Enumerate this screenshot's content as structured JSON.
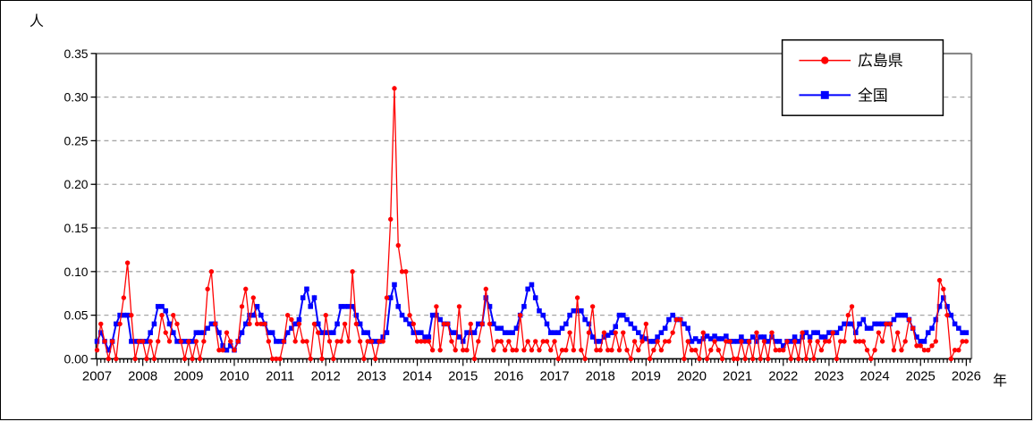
{
  "chart_data": {
    "type": "line",
    "title": "",
    "unit_label": "人",
    "x_axis_label": "年",
    "x_start_year": 2007,
    "x_end_year": 2026,
    "x_granularity": "monthly",
    "year_tick_labels": [
      "2007",
      "2008",
      "2009",
      "2010",
      "2011",
      "2012",
      "2013",
      "2014",
      "2015",
      "2016",
      "2017",
      "2018",
      "2019",
      "2020",
      "2021",
      "2022",
      "2023",
      "2024",
      "2025",
      "2026"
    ],
    "y_tick_labels": [
      "0.00",
      "0.05",
      "0.10",
      "0.15",
      "0.20",
      "0.25",
      "0.30",
      "0.35"
    ],
    "ylim": [
      0,
      0.35
    ],
    "y_step": 0.05,
    "grid": "horizontal dashed gray lines at each 0.05",
    "legend_position": "top-right inside plot",
    "colors": {
      "hiroshima": "#ff0000",
      "national": "#0000ff",
      "grid": "#a6a6a6",
      "frame": "#808080",
      "axis": "#000000"
    },
    "series": [
      {
        "name": "広島県",
        "color": "#ff0000",
        "marker": "circle",
        "values": [
          0.01,
          0.04,
          0.02,
          0.0,
          0.02,
          0.0,
          0.04,
          0.07,
          0.11,
          0.05,
          0.0,
          0.02,
          0.02,
          0.0,
          0.02,
          0.0,
          0.02,
          0.05,
          0.03,
          0.02,
          0.05,
          0.04,
          0.02,
          0.0,
          0.02,
          0.0,
          0.02,
          0.0,
          0.02,
          0.08,
          0.1,
          0.04,
          0.01,
          0.01,
          0.03,
          0.02,
          0.01,
          0.02,
          0.06,
          0.08,
          0.04,
          0.07,
          0.04,
          0.04,
          0.04,
          0.02,
          0.0,
          0.0,
          0.0,
          0.02,
          0.05,
          0.045,
          0.02,
          0.04,
          0.02,
          0.02,
          0.0,
          0.04,
          0.03,
          0.0,
          0.05,
          0.02,
          0.0,
          0.02,
          0.02,
          0.04,
          0.02,
          0.1,
          0.04,
          0.02,
          0.0,
          0.02,
          0.02,
          0.0,
          0.02,
          0.02,
          0.07,
          0.16,
          0.31,
          0.13,
          0.1,
          0.1,
          0.05,
          0.04,
          0.02,
          0.02,
          0.02,
          0.02,
          0.01,
          0.06,
          0.01,
          0.04,
          0.04,
          0.02,
          0.01,
          0.06,
          0.01,
          0.01,
          0.04,
          0.0,
          0.02,
          0.04,
          0.08,
          0.04,
          0.01,
          0.02,
          0.02,
          0.01,
          0.02,
          0.01,
          0.01,
          0.05,
          0.01,
          0.02,
          0.01,
          0.02,
          0.01,
          0.02,
          0.02,
          0.01,
          0.02,
          0.0,
          0.01,
          0.01,
          0.03,
          0.01,
          0.07,
          0.01,
          0.0,
          0.03,
          0.06,
          0.01,
          0.01,
          0.03,
          0.01,
          0.01,
          0.03,
          0.01,
          0.03,
          0.01,
          0.0,
          0.02,
          0.01,
          0.02,
          0.04,
          0.0,
          0.01,
          0.02,
          0.01,
          0.02,
          0.02,
          0.03,
          0.045,
          0.045,
          0.0,
          0.02,
          0.01,
          0.01,
          0.0,
          0.03,
          0.0,
          0.01,
          0.02,
          0.01,
          0.0,
          0.02,
          0.02,
          0.0,
          0.0,
          0.02,
          0.0,
          0.02,
          0.0,
          0.03,
          0.0,
          0.02,
          0.0,
          0.03,
          0.01,
          0.01,
          0.01,
          0.02,
          0.0,
          0.02,
          0.0,
          0.03,
          0.0,
          0.02,
          0.0,
          0.02,
          0.01,
          0.02,
          0.02,
          0.03,
          0.0,
          0.02,
          0.02,
          0.05,
          0.06,
          0.02,
          0.02,
          0.02,
          0.01,
          0.0,
          0.01,
          0.03,
          0.02,
          0.04,
          0.04,
          0.01,
          0.03,
          0.01,
          0.02,
          0.045,
          0.035,
          0.015,
          0.015,
          0.01,
          0.01,
          0.015,
          0.02,
          0.09,
          0.08,
          0.05,
          0.0,
          0.01,
          0.01,
          0.02,
          0.02
        ]
      },
      {
        "name": "全国",
        "color": "#0000ff",
        "marker": "square",
        "values": [
          0.02,
          0.03,
          0.02,
          0.01,
          0.02,
          0.04,
          0.05,
          0.05,
          0.05,
          0.02,
          0.02,
          0.02,
          0.02,
          0.02,
          0.03,
          0.04,
          0.06,
          0.06,
          0.055,
          0.04,
          0.03,
          0.02,
          0.02,
          0.02,
          0.02,
          0.02,
          0.03,
          0.03,
          0.03,
          0.035,
          0.04,
          0.04,
          0.03,
          0.015,
          0.01,
          0.015,
          0.01,
          0.02,
          0.03,
          0.04,
          0.05,
          0.05,
          0.06,
          0.05,
          0.04,
          0.03,
          0.03,
          0.02,
          0.02,
          0.02,
          0.03,
          0.035,
          0.04,
          0.045,
          0.07,
          0.08,
          0.06,
          0.07,
          0.04,
          0.03,
          0.03,
          0.03,
          0.03,
          0.04,
          0.06,
          0.06,
          0.06,
          0.06,
          0.05,
          0.04,
          0.03,
          0.03,
          0.02,
          0.02,
          0.02,
          0.025,
          0.03,
          0.07,
          0.085,
          0.06,
          0.05,
          0.045,
          0.04,
          0.03,
          0.03,
          0.03,
          0.025,
          0.025,
          0.05,
          0.05,
          0.045,
          0.04,
          0.04,
          0.03,
          0.03,
          0.025,
          0.02,
          0.03,
          0.03,
          0.03,
          0.04,
          0.04,
          0.07,
          0.06,
          0.04,
          0.035,
          0.035,
          0.03,
          0.03,
          0.03,
          0.035,
          0.05,
          0.06,
          0.08,
          0.085,
          0.07,
          0.055,
          0.05,
          0.04,
          0.03,
          0.03,
          0.03,
          0.035,
          0.04,
          0.05,
          0.055,
          0.055,
          0.055,
          0.045,
          0.04,
          0.025,
          0.02,
          0.02,
          0.025,
          0.027,
          0.03,
          0.037,
          0.05,
          0.05,
          0.045,
          0.04,
          0.035,
          0.03,
          0.025,
          0.023,
          0.02,
          0.02,
          0.025,
          0.03,
          0.035,
          0.045,
          0.05,
          0.045,
          0.045,
          0.04,
          0.035,
          0.02,
          0.023,
          0.02,
          0.023,
          0.026,
          0.023,
          0.026,
          0.023,
          0.023,
          0.026,
          0.02,
          0.02,
          0.02,
          0.025,
          0.02,
          0.02,
          0.025,
          0.02,
          0.025,
          0.025,
          0.02,
          0.025,
          0.02,
          0.02,
          0.015,
          0.02,
          0.02,
          0.025,
          0.02,
          0.025,
          0.03,
          0.025,
          0.03,
          0.03,
          0.025,
          0.025,
          0.03,
          0.03,
          0.03,
          0.035,
          0.04,
          0.04,
          0.04,
          0.03,
          0.04,
          0.045,
          0.035,
          0.035,
          0.04,
          0.04,
          0.04,
          0.04,
          0.04,
          0.045,
          0.05,
          0.05,
          0.05,
          0.045,
          0.035,
          0.025,
          0.02,
          0.02,
          0.03,
          0.035,
          0.045,
          0.06,
          0.07,
          0.06,
          0.05,
          0.04,
          0.035,
          0.03,
          0.03
        ]
      }
    ]
  }
}
